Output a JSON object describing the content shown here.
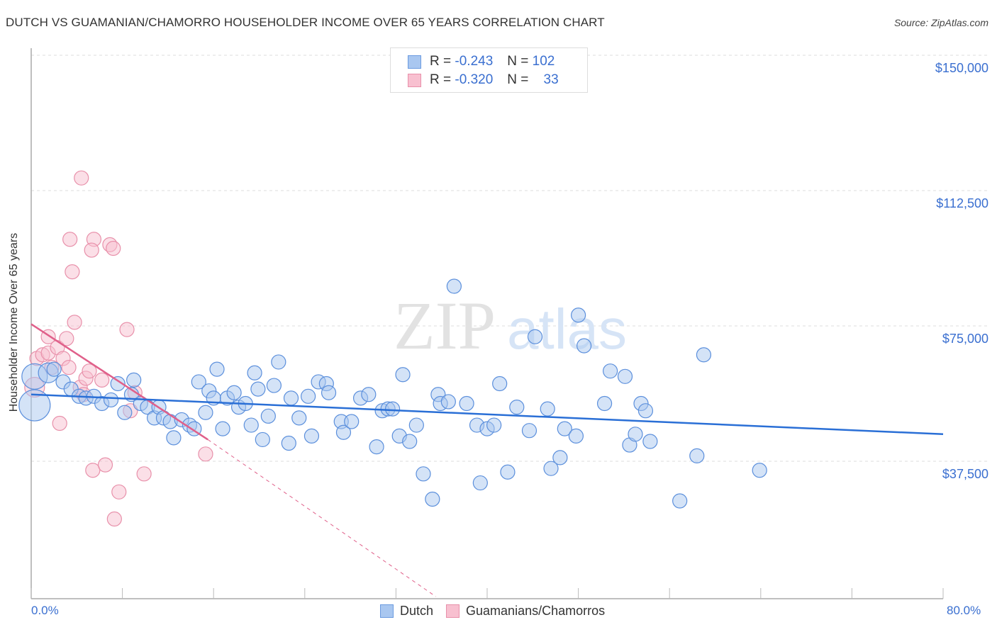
{
  "header": {
    "title": "DUTCH VS GUAMANIAN/CHAMORRO HOUSEHOLDER INCOME OVER 65 YEARS CORRELATION CHART",
    "source": "Source: ZipAtlas.com"
  },
  "legend_box": {
    "rows": [
      {
        "r_label": "R =",
        "r_value": "-0.243",
        "n_label": "N =",
        "n_value": "102",
        "color": "#a9c7f0",
        "border": "#6b9be0"
      },
      {
        "r_label": "R =",
        "r_value": "-0.320",
        "n_label": "N =",
        "n_value": "33",
        "color": "#f8c0d0",
        "border": "#e890aa"
      }
    ]
  },
  "axes": {
    "ylabel": "Householder Income Over 65 years",
    "x_min_label": "0.0%",
    "x_max_label": "80.0%",
    "y_ticks": [
      "$150,000",
      "$112,500",
      "$75,000",
      "$37,500"
    ]
  },
  "bottom_legend": {
    "items": [
      {
        "label": "Dutch",
        "color": "#a9c7f0",
        "border": "#6b9be0"
      },
      {
        "label": "Guamanians/Chamorros",
        "color": "#f8c0d0",
        "border": "#e890aa"
      }
    ]
  },
  "watermark": {
    "zip": "ZIP",
    "atlas": "atlas"
  },
  "colors": {
    "dutch_fill": "#a9c7f0",
    "dutch_stroke": "#5b8fdc",
    "dutch_line": "#2a6fd6",
    "guam_fill": "#f8c0d0",
    "guam_stroke": "#e890aa",
    "guam_line": "#e0608a",
    "axis_label": "#3a6fd0",
    "grid": "#dddddd"
  },
  "chart_data": {
    "type": "scatter",
    "title": "DUTCH VS GUAMANIAN/CHAMORRO HOUSEHOLDER INCOME OVER 65 YEARS CORRELATION CHART",
    "xlabel": "",
    "ylabel": "Householder Income Over 65 years",
    "xlim": [
      0,
      80
    ],
    "ylim": [
      0,
      155000
    ],
    "x_tick_labels": [
      "0.0%",
      "80.0%"
    ],
    "y_ticks": [
      37500,
      75000,
      112500,
      150000
    ],
    "y_tick_labels": [
      "$37,500",
      "$75,000",
      "$112,500",
      "$150,000"
    ],
    "grid": true,
    "legend_position": "bottom",
    "series": [
      {
        "name": "Dutch",
        "R": -0.243,
        "N": 102,
        "trend": {
          "x": [
            0,
            80
          ],
          "y": [
            56000,
            45000
          ]
        },
        "points": [
          [
            0.3,
            53000,
            22
          ],
          [
            0.3,
            61000,
            18
          ],
          [
            1.5,
            62000,
            14
          ],
          [
            2.0,
            63000,
            10
          ],
          [
            2.8,
            59500,
            10
          ],
          [
            3.5,
            57500,
            10
          ],
          [
            4.2,
            55500,
            10
          ],
          [
            4.8,
            55000,
            10
          ],
          [
            5.5,
            55500,
            10
          ],
          [
            6.2,
            53500,
            10
          ],
          [
            7.0,
            54500,
            10
          ],
          [
            7.6,
            59000,
            10
          ],
          [
            8.2,
            51000,
            10
          ],
          [
            8.8,
            56000,
            10
          ],
          [
            9.0,
            60000,
            10
          ],
          [
            9.6,
            53500,
            10
          ],
          [
            10.2,
            52500,
            10
          ],
          [
            10.8,
            49500,
            10
          ],
          [
            11.2,
            52500,
            10
          ],
          [
            11.6,
            49500,
            10
          ],
          [
            12.2,
            48500,
            10
          ],
          [
            12.5,
            44000,
            10
          ],
          [
            13.2,
            49000,
            10
          ],
          [
            13.9,
            47500,
            10
          ],
          [
            14.3,
            46500,
            10
          ],
          [
            14.7,
            59500,
            10
          ],
          [
            15.3,
            51000,
            10
          ],
          [
            15.6,
            57000,
            10
          ],
          [
            16.0,
            55000,
            10
          ],
          [
            16.3,
            63000,
            10
          ],
          [
            16.8,
            46500,
            10
          ],
          [
            17.2,
            55000,
            10
          ],
          [
            17.8,
            56500,
            10
          ],
          [
            18.2,
            52500,
            10
          ],
          [
            18.8,
            53500,
            10
          ],
          [
            19.3,
            47500,
            10
          ],
          [
            19.6,
            62000,
            10
          ],
          [
            19.9,
            57500,
            10
          ],
          [
            20.3,
            43500,
            10
          ],
          [
            20.8,
            50000,
            10
          ],
          [
            21.3,
            58500,
            10
          ],
          [
            21.7,
            65000,
            10
          ],
          [
            22.6,
            42500,
            10
          ],
          [
            22.8,
            55000,
            10
          ],
          [
            23.5,
            49500,
            10
          ],
          [
            24.3,
            55500,
            10
          ],
          [
            24.6,
            44500,
            10
          ],
          [
            25.2,
            59500,
            10
          ],
          [
            25.9,
            59000,
            10
          ],
          [
            26.1,
            56500,
            10
          ],
          [
            27.2,
            48500,
            10
          ],
          [
            27.4,
            45500,
            10
          ],
          [
            28.1,
            48500,
            10
          ],
          [
            28.9,
            55000,
            10
          ],
          [
            29.6,
            56000,
            10
          ],
          [
            30.3,
            41500,
            10
          ],
          [
            30.8,
            51500,
            10
          ],
          [
            31.3,
            52000,
            10
          ],
          [
            31.7,
            52000,
            10
          ],
          [
            32.3,
            44500,
            10
          ],
          [
            32.6,
            61500,
            10
          ],
          [
            33.2,
            43000,
            10
          ],
          [
            33.8,
            47500,
            10
          ],
          [
            34.4,
            34000,
            10
          ],
          [
            35.2,
            27000,
            10
          ],
          [
            35.7,
            56000,
            10
          ],
          [
            35.9,
            53500,
            10
          ],
          [
            36.6,
            54000,
            10
          ],
          [
            37.1,
            86000,
            10
          ],
          [
            38.2,
            53500,
            10
          ],
          [
            39.1,
            47500,
            10
          ],
          [
            39.4,
            31500,
            10
          ],
          [
            40.0,
            46500,
            10
          ],
          [
            40.6,
            47500,
            10
          ],
          [
            41.1,
            59000,
            10
          ],
          [
            41.8,
            34500,
            10
          ],
          [
            42.6,
            52500,
            10
          ],
          [
            43.7,
            46000,
            10
          ],
          [
            44.2,
            72000,
            10
          ],
          [
            45.3,
            52000,
            10
          ],
          [
            45.6,
            35500,
            10
          ],
          [
            46.4,
            38500,
            10
          ],
          [
            46.8,
            46500,
            10
          ],
          [
            47.8,
            44500,
            10
          ],
          [
            48.0,
            78000,
            10
          ],
          [
            48.5,
            69500,
            10
          ],
          [
            50.3,
            53500,
            10
          ],
          [
            50.8,
            62500,
            10
          ],
          [
            52.1,
            61000,
            10
          ],
          [
            52.5,
            42000,
            10
          ],
          [
            53.0,
            45000,
            10
          ],
          [
            53.5,
            53500,
            10
          ],
          [
            53.9,
            51500,
            10
          ],
          [
            54.3,
            43000,
            10
          ],
          [
            56.9,
            26500,
            10
          ],
          [
            58.4,
            39000,
            10
          ],
          [
            59.0,
            67000,
            10
          ],
          [
            63.9,
            35000,
            10
          ]
        ]
      },
      {
        "name": "Guamanians/Chamorros",
        "R": -0.32,
        "N": 33,
        "trend": {
          "x": [
            0,
            15.5
          ],
          "y": [
            75500,
            43500
          ]
        },
        "trend_dashed_extension": {
          "x": [
            15.5,
            35.5
          ],
          "y": [
            43500,
            0
          ]
        },
        "points": [
          [
            0.3,
            58000,
            14
          ],
          [
            0.5,
            66000,
            10
          ],
          [
            1.0,
            67000,
            10
          ],
          [
            1.5,
            67500,
            10
          ],
          [
            1.8,
            63500,
            10
          ],
          [
            1.5,
            72000,
            10
          ],
          [
            2.3,
            69000,
            10
          ],
          [
            2.5,
            48000,
            10
          ],
          [
            2.8,
            66000,
            10
          ],
          [
            3.1,
            71500,
            10
          ],
          [
            3.3,
            63500,
            10
          ],
          [
            3.4,
            99000,
            10
          ],
          [
            3.8,
            76000,
            10
          ],
          [
            3.6,
            90000,
            10
          ],
          [
            4.3,
            58000,
            10
          ],
          [
            4.4,
            116000,
            10
          ],
          [
            4.6,
            56000,
            10
          ],
          [
            4.8,
            60500,
            10
          ],
          [
            5.1,
            62500,
            10
          ],
          [
            5.5,
            99000,
            10
          ],
          [
            5.3,
            96000,
            10
          ],
          [
            5.4,
            35000,
            10
          ],
          [
            6.2,
            60000,
            10
          ],
          [
            6.5,
            36500,
            10
          ],
          [
            6.9,
            97500,
            10
          ],
          [
            7.2,
            96500,
            10
          ],
          [
            7.3,
            21500,
            10
          ],
          [
            7.7,
            29000,
            10
          ],
          [
            8.4,
            74000,
            10
          ],
          [
            8.7,
            51500,
            10
          ],
          [
            9.1,
            56500,
            10
          ],
          [
            9.9,
            34000,
            10
          ],
          [
            15.3,
            39500,
            10
          ]
        ]
      }
    ]
  }
}
